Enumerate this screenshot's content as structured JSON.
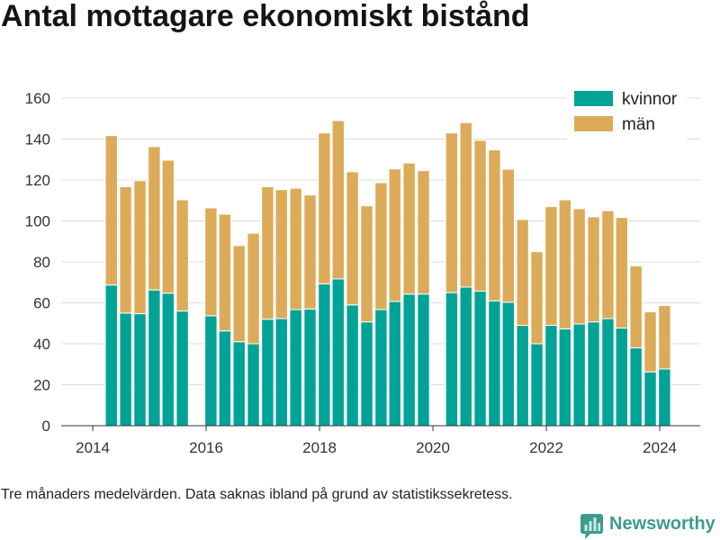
{
  "chart_data": {
    "type": "bar",
    "stacked": true,
    "title": "Antal mottagare ekonomiskt bistånd",
    "x": [
      "2014-05",
      "2014-08",
      "2014-11",
      "2015-02",
      "2015-05",
      "2015-08",
      "2016-02",
      "2016-05",
      "2016-08",
      "2016-11",
      "2017-02",
      "2017-05",
      "2017-08",
      "2017-11",
      "2018-02",
      "2018-05",
      "2018-08",
      "2018-11",
      "2019-02",
      "2019-05",
      "2019-08",
      "2019-11",
      "2020-05",
      "2020-08",
      "2020-11",
      "2021-02",
      "2021-05",
      "2021-08",
      "2021-11",
      "2022-02",
      "2022-05",
      "2022-08",
      "2022-11",
      "2023-02",
      "2023-05",
      "2023-08",
      "2023-11",
      "2024-02"
    ],
    "xlim": [
      "2013-06-12",
      "2024-09-18"
    ],
    "xticks": [
      "2014",
      "2016",
      "2018",
      "2020",
      "2022",
      "2024"
    ],
    "ylim": [
      0,
      160
    ],
    "yticks": [
      0,
      20,
      40,
      60,
      80,
      100,
      120,
      140,
      160
    ],
    "grid": true,
    "legend": "top-right",
    "series": [
      {
        "name": "kvinnor",
        "color": "#00a396",
        "values": [
          68.7,
          55.0,
          54.7,
          66.3,
          64.7,
          56.0,
          53.7,
          46.3,
          41.0,
          40.0,
          52.0,
          52.3,
          56.7,
          57.0,
          69.3,
          71.7,
          59.0,
          50.7,
          56.7,
          60.7,
          64.3,
          64.3,
          65.0,
          67.7,
          65.7,
          61.0,
          60.3,
          49.0,
          40.0,
          49.0,
          47.3,
          49.7,
          50.7,
          52.3,
          47.7,
          38.0,
          26.3,
          27.7
        ]
      },
      {
        "name": "män",
        "color": "#dcab5a",
        "values": [
          73.0,
          61.7,
          65.0,
          70.0,
          65.0,
          54.3,
          52.7,
          57.0,
          47.0,
          54.0,
          64.7,
          63.0,
          59.3,
          55.7,
          73.7,
          77.3,
          65.0,
          56.7,
          62.0,
          64.7,
          64.0,
          60.3,
          78.0,
          80.3,
          73.7,
          73.7,
          65.0,
          51.7,
          45.0,
          58.0,
          63.0,
          56.3,
          51.3,
          52.7,
          54.0,
          40.0,
          29.3,
          31.0
        ]
      }
    ]
  },
  "footnote": "Tre månaders medelvärden. Data saknas ibland på grund av statistikssekretess.",
  "logo": {
    "text": "Newsworthy",
    "icon": "bar-chart-bubble-icon",
    "color": "#3e9a8f"
  }
}
